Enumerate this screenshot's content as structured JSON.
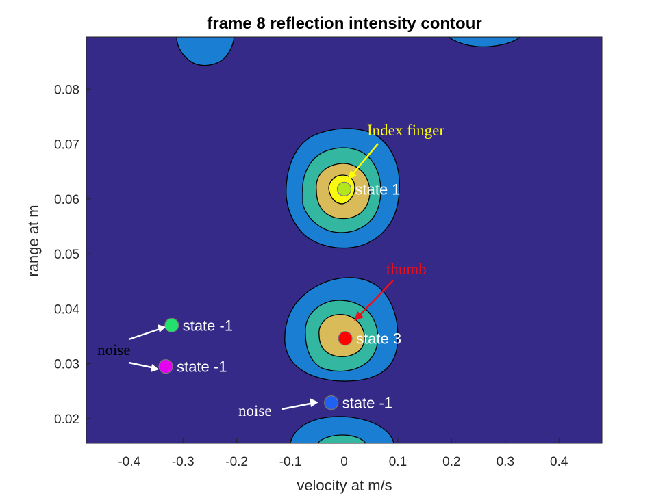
{
  "chart_data": {
    "type": "contour",
    "title": "frame 8 reflection intensity contour",
    "xlabel": "velocity at m/s",
    "ylabel": "range at m",
    "xlim": [
      -0.48,
      0.48
    ],
    "ylim": [
      0.0155,
      0.0895
    ],
    "xticks": [
      -0.4,
      -0.3,
      -0.2,
      -0.1,
      0,
      0.1,
      0.2,
      0.3,
      0.4
    ],
    "xtick_labels": [
      "-0.4",
      "-0.3",
      "-0.2",
      "-0.1",
      "0",
      "0.1",
      "0.2",
      "0.3",
      "0.4"
    ],
    "yticks": [
      0.02,
      0.03,
      0.04,
      0.05,
      0.06,
      0.07,
      0.08
    ],
    "ytick_labels": [
      "0.02",
      "0.03",
      "0.04",
      "0.05",
      "0.06",
      "0.07",
      "0.08"
    ],
    "grid": false,
    "level_colors": [
      "#352a87",
      "#1a7fd3",
      "#33b7a0",
      "#d9bb59",
      "#f9f90f"
    ],
    "points": [
      {
        "x": 0.0,
        "y": 0.0618,
        "state_label": "state 1",
        "color": "#b4e61e"
      },
      {
        "x": 0.002,
        "y": 0.0346,
        "state_label": "state 3",
        "color": "#ff0000"
      },
      {
        "x": -0.321,
        "y": 0.037,
        "state_label": "state -1",
        "color": "#21e26d"
      },
      {
        "x": -0.332,
        "y": 0.0295,
        "state_label": "state -1",
        "color": "#e400f0"
      },
      {
        "x": -0.024,
        "y": 0.0229,
        "state_label": "state -1",
        "color": "#1f62f2"
      }
    ],
    "annotations": [
      {
        "text": "Index finger",
        "color": "#ffff00"
      },
      {
        "text": "thumb",
        "color": "#e8101a"
      },
      {
        "text": "noise",
        "color": "#ffffff"
      },
      {
        "text": "noise",
        "color": "#ffffff"
      }
    ]
  }
}
